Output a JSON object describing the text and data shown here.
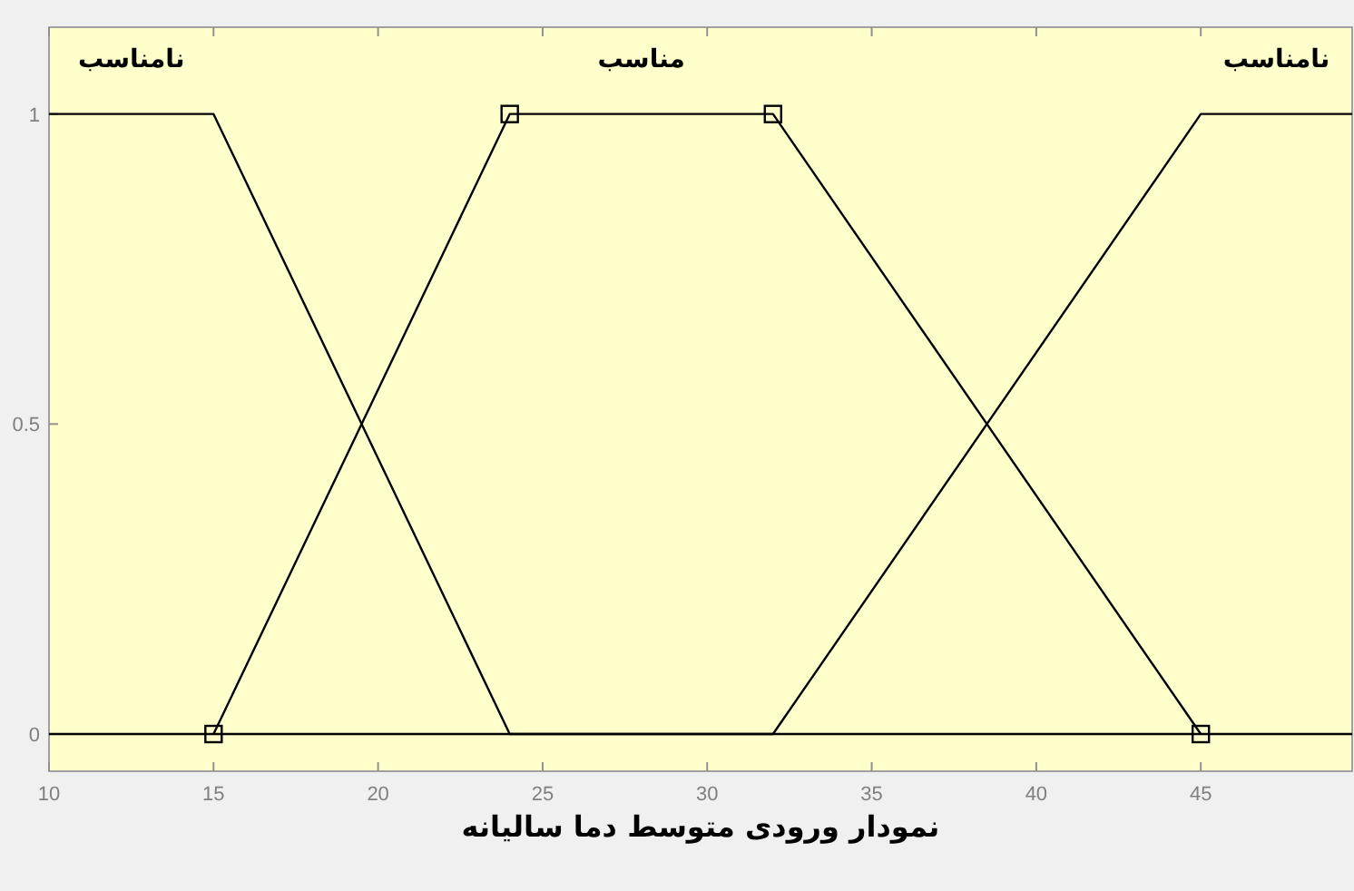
{
  "chart_data": {
    "type": "line",
    "xlabel": "نمودار ورودی متوسط دما سالیانه",
    "xlim": [
      10,
      49.6
    ],
    "ylim": [
      -0.06,
      1.14
    ],
    "xticks": [
      10,
      15,
      20,
      25,
      30,
      35,
      40,
      45
    ],
    "yticks": [
      0,
      0.5,
      1
    ],
    "grid": false,
    "legend": false,
    "line_style": "solid",
    "series": [
      {
        "name": "نامناسب",
        "color": "#000000",
        "x": [
          10,
          15,
          24,
          49.6
        ],
        "values": [
          1,
          1,
          0,
          0
        ]
      },
      {
        "name": "مناسب",
        "color": "#000000",
        "marker": "square",
        "x": [
          15,
          24,
          32,
          45
        ],
        "values": [
          0,
          1,
          1,
          0
        ]
      },
      {
        "name": "نامناسب",
        "color": "#000000",
        "x": [
          10,
          32,
          45,
          49.6
        ],
        "values": [
          0,
          0,
          1,
          1
        ]
      }
    ]
  }
}
